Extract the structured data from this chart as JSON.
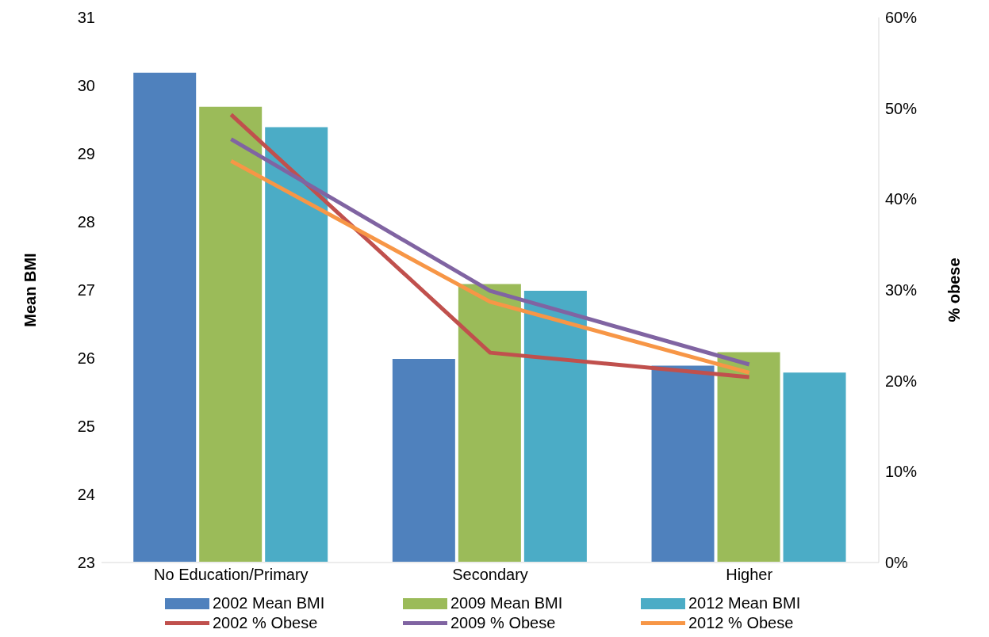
{
  "chart_data": {
    "type": "bar",
    "categories": [
      "No Education/Primary",
      "Secondary",
      "Higher"
    ],
    "ylabel": "Mean BMI",
    "y2label": "% obese",
    "ylim": [
      23,
      31
    ],
    "yticks": [
      23,
      24,
      25,
      26,
      27,
      28,
      29,
      30,
      31
    ],
    "y2lim": [
      0,
      60
    ],
    "y2ticks": [
      {
        "value": 0,
        "label": "0%"
      },
      {
        "value": 10,
        "label": "10%"
      },
      {
        "value": 20,
        "label": "20%"
      },
      {
        "value": 30,
        "label": "30%"
      },
      {
        "value": 40,
        "label": "40%"
      },
      {
        "value": 50,
        "label": "50%"
      },
      {
        "value": 60,
        "label": "60%"
      }
    ],
    "grid": false,
    "legend": "bottom",
    "marker": "none",
    "line_style": "solid",
    "series": [
      {
        "name": "2002 Mean BMI",
        "color": "#4f81bd",
        "values": [
          30.2,
          26.0,
          25.9
        ]
      },
      {
        "name": "2009 Mean BMI",
        "color": "#9bbb59",
        "values": [
          29.7,
          27.1,
          26.1
        ]
      },
      {
        "name": "2012 Mean BMI",
        "color": "#4bacc6",
        "values": [
          29.4,
          27.0,
          25.8
        ]
      },
      {
        "name": "2002 % Obese",
        "type": "line",
        "axis": "y2",
        "color": "#c0504d",
        "values": [
          49.3,
          23.1,
          20.4
        ]
      },
      {
        "name": "2009 % Obese",
        "type": "line",
        "axis": "y2",
        "color": "#8064a2",
        "values": [
          46.6,
          29.9,
          21.8
        ]
      },
      {
        "name": "2012 % Obese",
        "type": "line",
        "axis": "y2",
        "color": "#f79646",
        "values": [
          44.2,
          28.7,
          20.9
        ]
      }
    ]
  }
}
